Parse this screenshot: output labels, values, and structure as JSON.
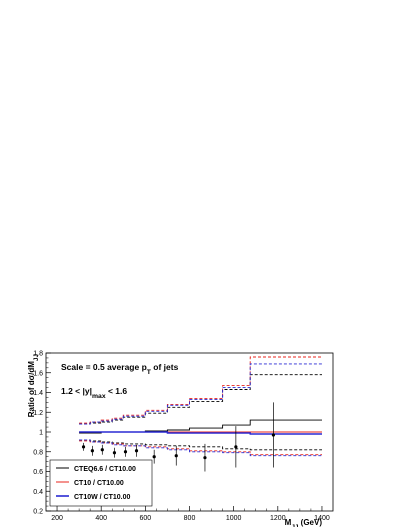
{
  "chart_data": {
    "type": "line",
    "title": "",
    "xlabel": "M_JJ (GeV)",
    "ylabel": "Ratio of dσ/dM_JJ",
    "xlim": [
      150,
      1450
    ],
    "ylim": [
      0.2,
      1.8
    ],
    "xticks": [
      200,
      400,
      600,
      800,
      1000,
      1200,
      1400
    ],
    "yticks": [
      0.2,
      0.4,
      0.6,
      0.8,
      1.0,
      1.2,
      1.4,
      1.6,
      1.8
    ],
    "ytick_labels": [
      "0.2",
      "0.4",
      "0.6",
      "0.8",
      "1",
      "1.2",
      "1.4",
      "1.6",
      "1.8"
    ],
    "annotations": [
      {
        "text": "Scale = 0.5 average p_T of jets"
      },
      {
        "text": "1.2 < |y|_max < 1.6"
      }
    ],
    "legend_position": "bottom-left",
    "bin_edges": [
      300,
      350,
      400,
      450,
      500,
      600,
      700,
      800,
      950,
      1075,
      1400
    ],
    "series": [
      {
        "name": "CTEQ6.6 / CT10.00",
        "color": "#000000",
        "central": [
          0.99,
          0.99,
          1.0,
          1.0,
          1.0,
          1.01,
          1.02,
          1.04,
          1.07,
          1.12
        ],
        "upper": [
          1.08,
          1.09,
          1.1,
          1.12,
          1.15,
          1.19,
          1.25,
          1.31,
          1.43,
          1.58
        ],
        "lower": [
          0.92,
          0.91,
          0.9,
          0.89,
          0.88,
          0.87,
          0.86,
          0.85,
          0.83,
          0.82
        ]
      },
      {
        "name": "CT10 / CT10.00",
        "color": "#e8261e",
        "central": [
          1.0,
          1.0,
          1.0,
          1.0,
          1.0,
          1.0,
          1.0,
          1.0,
          1.0,
          1.0
        ],
        "upper": [
          1.09,
          1.1,
          1.12,
          1.14,
          1.17,
          1.22,
          1.28,
          1.34,
          1.47,
          1.76
        ],
        "lower": [
          0.91,
          0.9,
          0.89,
          0.88,
          0.86,
          0.85,
          0.83,
          0.81,
          0.8,
          0.77
        ]
      },
      {
        "name": "CT10W / CT10.00",
        "color": "#2a2ad4",
        "central": [
          1.0,
          1.0,
          1.0,
          1.0,
          1.0,
          1.0,
          0.99,
          0.99,
          0.99,
          0.98
        ],
        "upper": [
          1.08,
          1.1,
          1.11,
          1.13,
          1.16,
          1.21,
          1.27,
          1.33,
          1.45,
          1.69
        ],
        "lower": [
          0.92,
          0.9,
          0.89,
          0.87,
          0.86,
          0.84,
          0.82,
          0.8,
          0.79,
          0.76
        ]
      }
    ],
    "data_points": {
      "x": [
        320,
        360,
        405,
        460,
        510,
        560,
        640,
        740,
        870,
        1010,
        1180
      ],
      "y": [
        0.85,
        0.81,
        0.82,
        0.79,
        0.8,
        0.81,
        0.75,
        0.76,
        0.74,
        0.85,
        0.97
      ],
      "err": [
        0.04,
        0.05,
        0.05,
        0.05,
        0.05,
        0.06,
        0.07,
        0.1,
        0.14,
        0.21,
        0.33
      ]
    }
  }
}
